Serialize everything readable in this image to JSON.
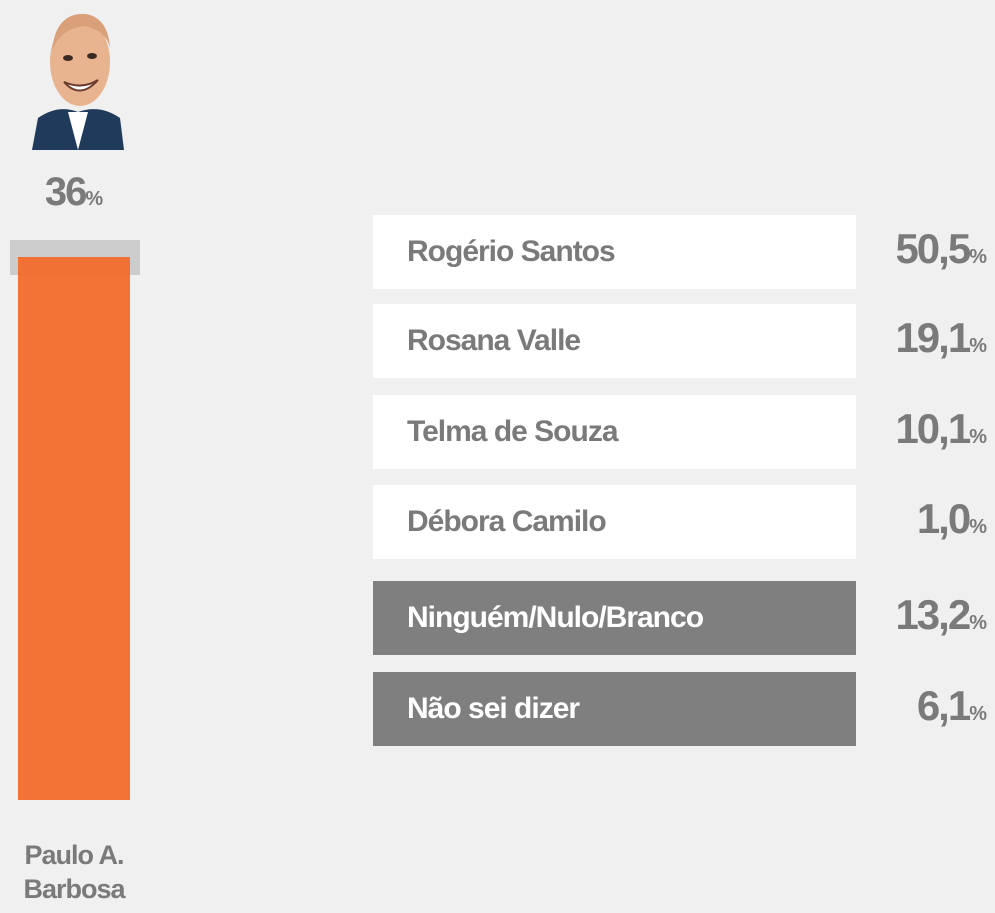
{
  "unit": "%",
  "featured": {
    "value": "36",
    "name_lines": [
      "Paulo A.",
      "Barbosa"
    ]
  },
  "candidates": [
    {
      "name": "Rogério Santos",
      "value": "50,5"
    },
    {
      "name": "Rosana Valle",
      "value": "19,1"
    },
    {
      "name": "Telma de Souza",
      "value": "10,1"
    },
    {
      "name": "Débora Camilo",
      "value": "1,0"
    }
  ],
  "others": [
    {
      "name": "Ninguém/Nulo/Branco",
      "value": "13,2"
    },
    {
      "name": "Não sei dizer",
      "value": "6,1"
    }
  ]
}
